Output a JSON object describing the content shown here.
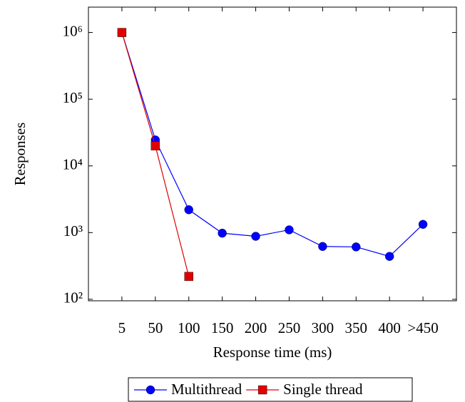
{
  "chart_data": {
    "type": "line",
    "x_label": "Response time (ms)",
    "y_label": "Responses",
    "categories": [
      "5",
      "50",
      "100",
      "150",
      "200",
      "250",
      "300",
      "350",
      "400",
      ">450"
    ],
    "series": [
      {
        "name": "Multithread",
        "color": "#0000ff",
        "marker": "circle",
        "values": [
          1000000,
          24500,
          2200,
          980,
          880,
          1100,
          620,
          610,
          440,
          1330
        ]
      },
      {
        "name": "Single thread",
        "color": "#e00000",
        "marker": "square",
        "values": [
          1000000,
          20000,
          220,
          null,
          null,
          null,
          null,
          null,
          null,
          null
        ]
      }
    ],
    "y_log": true,
    "ylim": [
      95,
      2400000
    ],
    "yticks": [
      {
        "value": 100,
        "label": "10²"
      },
      {
        "value": 1000,
        "label": "10³"
      },
      {
        "value": 10000,
        "label": "10⁴"
      },
      {
        "value": 100000,
        "label": "10⁵"
      },
      {
        "value": 1000000,
        "label": "10⁶"
      }
    ],
    "legend": "bottom"
  }
}
